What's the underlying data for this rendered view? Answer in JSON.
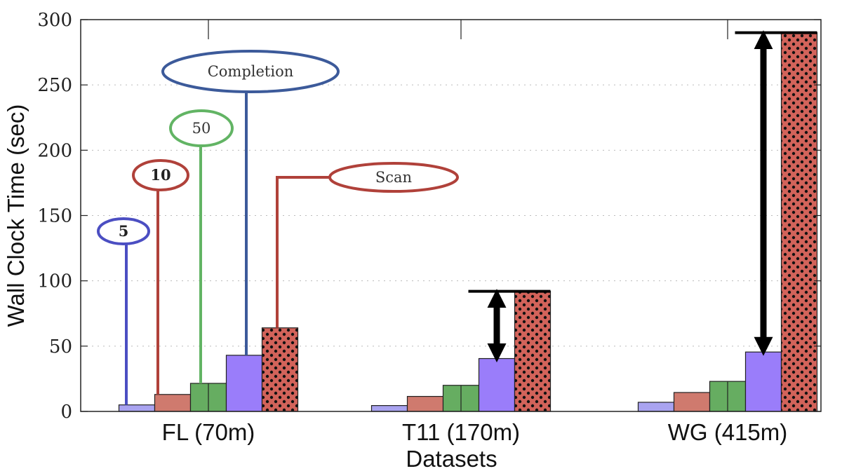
{
  "chart_data": {
    "type": "bar",
    "xlabel": "Datasets",
    "ylabel": "Wall Clock Time (sec)",
    "ylim": [
      0,
      300
    ],
    "yticks": [
      0,
      50,
      100,
      150,
      200,
      250,
      300
    ],
    "categories": [
      "FL (70m)",
      "T11 (170m)",
      "WG (415m)"
    ],
    "series": [
      {
        "name": "5",
        "color": "#a9a3f0",
        "values": [
          5,
          4.5,
          7
        ]
      },
      {
        "name": "10",
        "color": "#cf7a6e",
        "values": [
          13,
          11.5,
          14.5
        ]
      },
      {
        "name": "50",
        "color": "#66ad61",
        "values": [
          21.5,
          20,
          23
        ]
      },
      {
        "name": "Completion",
        "color": "#9a7dfa",
        "values": [
          43,
          40.5,
          45.5
        ]
      },
      {
        "name": "Scan",
        "color": "#d2635a",
        "pattern": "dots",
        "values": [
          64,
          92,
          290
        ]
      }
    ],
    "callout_colors": {
      "5": "#4b4ec2",
      "10": "#b0413a",
      "50": "#62b464",
      "Completion": "#3c5a9a",
      "Scan": "#b0413a"
    },
    "gap_arrows": [
      "T11 (170m)",
      "WG (415m)"
    ]
  }
}
